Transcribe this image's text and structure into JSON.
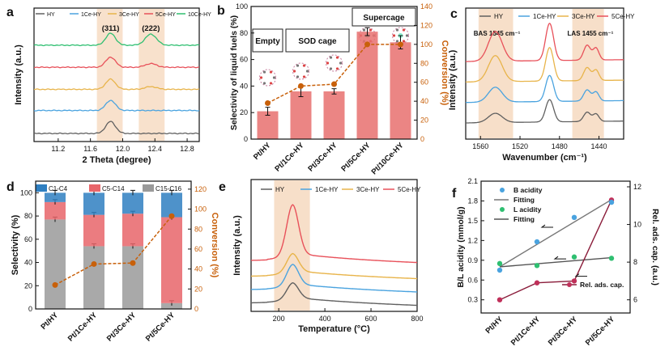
{
  "colors": {
    "HY": "#606060",
    "1Ce": "#4aa3df",
    "3Ce": "#e8b44a",
    "5Ce": "#e8515a",
    "10Ce": "#2fbf71",
    "conv": "#c8600a",
    "band": "#f6d9bf",
    "c1c4": "#2f7fc1",
    "c5c14": "#e8656a",
    "c15c16": "#9a9a9a",
    "bar": "#e8706f",
    "bacid": "#4aa3df",
    "lacid": "#2fbf71",
    "rel": "#c0305a"
  },
  "chart_data": [
    {
      "panel": "a",
      "type": "line",
      "xlabel": "2 Theta (degree)",
      "ylabel": "Intensity (a.u.)",
      "xlim": [
        10.9,
        12.95
      ],
      "xticks": [
        "11.2",
        "11.6",
        "12.0",
        "12.4",
        "12.8"
      ],
      "legend": [
        "HY",
        "1Ce-HY",
        "3Ce-HY",
        "5Ce-HY",
        "10Ce-HY"
      ],
      "peak_labels": [
        "(311)",
        "(222)"
      ],
      "peaks": [
        11.85,
        12.35
      ],
      "series": [
        {
          "name": "HY",
          "offset": 0.0,
          "peak311": 0.13,
          "peak222": 0.0
        },
        {
          "name": "1Ce-HY",
          "offset": 0.25,
          "peak311": 0.11,
          "peak222": 0.0
        },
        {
          "name": "3Ce-HY",
          "offset": 0.48,
          "peak311": 0.11,
          "peak222": 0.03
        },
        {
          "name": "5Ce-HY",
          "offset": 0.72,
          "peak311": 0.11,
          "peak222": 0.04
        },
        {
          "name": "10Ce-HY",
          "offset": 0.96,
          "peak311": 0.13,
          "peak222": 0.12
        }
      ]
    },
    {
      "panel": "b",
      "type": "bar",
      "ylabel": "Selectivity of liquid fuels (%)",
      "y2label": "Conversion (%)",
      "categories": [
        "Pt/HY",
        "Pt/1Ce-HY",
        "Pt/3Ce-HY",
        "Pt/5Ce-HY",
        "Pt/10Ce-HY"
      ],
      "ylim": [
        0,
        100
      ],
      "yticks": [
        "0",
        "20",
        "40",
        "60",
        "80",
        "100"
      ],
      "y2lim": [
        0,
        140
      ],
      "y2ticks": [
        "0",
        "20",
        "40",
        "60",
        "80",
        "100",
        "120",
        "140"
      ],
      "selectivity": [
        21,
        36,
        36,
        81,
        73
      ],
      "selectivity_err": [
        3,
        4,
        2,
        3,
        5
      ],
      "conversion": [
        38,
        56,
        58,
        100,
        100
      ],
      "group_labels": [
        "Empty",
        "SOD cage",
        "Supercage"
      ]
    },
    {
      "panel": "c",
      "type": "line",
      "xlabel": "Wavenumber (cm⁻¹)",
      "ylabel": "Intensity (a.u.)",
      "xlim": [
        1575,
        1415
      ],
      "xticks": [
        "1560",
        "1520",
        "1480",
        "1440"
      ],
      "legend": [
        "HY",
        "1Ce-HY",
        "3Ce-HY",
        "5Ce-HY"
      ],
      "band_labels": [
        "BAS 1545 cm⁻¹",
        "LAS 1455 cm⁻¹"
      ]
    },
    {
      "panel": "d",
      "type": "bar",
      "stacked": true,
      "ylabel": "Selectivity (%)",
      "y2label": "Conversion (%)",
      "categories": [
        "Pt/HY",
        "Pt/1Ce-HY",
        "Pt/3Ce-HY",
        "Pt/5Ce-HY"
      ],
      "yticks": [
        "0",
        "20",
        "40",
        "60",
        "80",
        "100"
      ],
      "y2ticks": [
        "0",
        "20",
        "40",
        "60",
        "80",
        "100",
        "120"
      ],
      "legend": [
        "C1-C4",
        "C5-C14",
        "C15-C16"
      ],
      "series": [
        {
          "name": "C15-C16",
          "values": [
            77,
            54,
            54,
            5
          ]
        },
        {
          "name": "C5-C14",
          "values": [
            15,
            27,
            28,
            74
          ]
        },
        {
          "name": "C1-C4",
          "values": [
            8,
            19,
            18,
            21
          ]
        }
      ],
      "conversion": [
        24,
        45,
        46,
        93
      ]
    },
    {
      "panel": "e",
      "type": "line",
      "xlabel": "Temperature (°C)",
      "ylabel": "Intensity (a.u.)",
      "xlim": [
        80,
        800
      ],
      "xticks": [
        "200",
        "400",
        "600",
        "800"
      ],
      "legend": [
        "HY",
        "1Ce-HY",
        "3Ce-HY",
        "5Ce-HY"
      ],
      "peak_temp": 260
    },
    {
      "panel": "f",
      "type": "scatter",
      "ylabel": "B/L acidity (mmol/g)",
      "y2label": "Rel. ads. cap. (a.u.)",
      "categories": [
        "Pt/HY",
        "Pt/1Ce-HY",
        "Pt/3Ce-HY",
        "Pt/5Ce-HY"
      ],
      "ylim": [
        0.1,
        2.1
      ],
      "yticks": [
        "0.3",
        "0.6",
        "0.9",
        "1.2",
        "1.5",
        "1.8",
        "2.1"
      ],
      "y2lim": [
        5.3,
        12.3
      ],
      "y2ticks": [
        "6",
        "8",
        "10",
        "12"
      ],
      "legend": [
        "B acidity",
        "Fitting",
        "L acidity",
        "Fitting",
        "Rel. ads. cap."
      ],
      "b_acidity": [
        0.75,
        1.18,
        1.55,
        1.78
      ],
      "l_acidity": [
        0.85,
        0.82,
        0.95,
        0.93
      ],
      "rel_ads": [
        6.0,
        6.9,
        7.0,
        11.3
      ]
    }
  ]
}
